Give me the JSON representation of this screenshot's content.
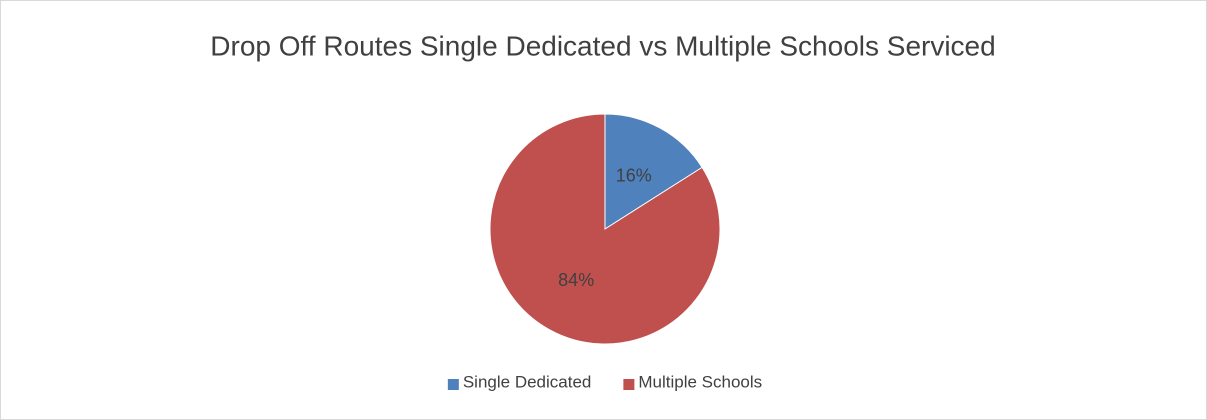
{
  "chart_data": {
    "type": "pie",
    "title": "Drop Off Routes Single Dedicated vs Multiple Schools Serviced",
    "categories": [
      "Single Dedicated",
      "Multiple Schools"
    ],
    "values": [
      16,
      84
    ],
    "value_labels": [
      "16%",
      "84%"
    ],
    "colors": [
      "#4f81bd",
      "#c0504d"
    ],
    "legend": "bottom"
  }
}
